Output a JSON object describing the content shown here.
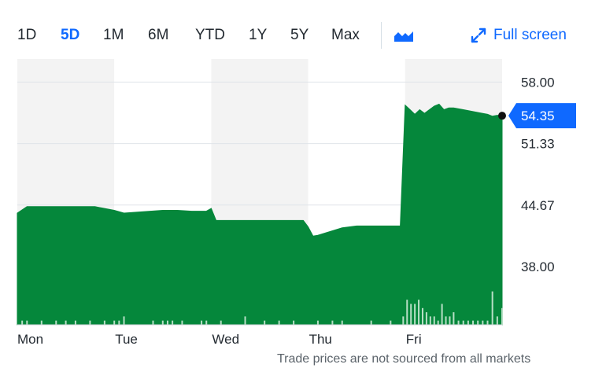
{
  "toolbar": {
    "ranges": [
      "1D",
      "5D",
      "1M",
      "6M",
      "YTD",
      "1Y",
      "5Y",
      "Max"
    ],
    "active_range": "5D",
    "chart_type_icon": "mountain-chart-icon",
    "fullscreen_icon": "expand-arrows-icon",
    "fullscreen_label": "Full screen"
  },
  "colors": {
    "price_area": "#05873b",
    "volume_bars": "#b7dfc5",
    "accent": "#0f69ff",
    "alt_band": "#f3f3f3"
  },
  "chart_data": {
    "type": "area",
    "x_categories": [
      "Mon",
      "Tue",
      "Wed",
      "Thu",
      "Fri"
    ],
    "yticks": [
      58.0,
      51.33,
      44.67,
      38.0
    ],
    "ylim": [
      31.7,
      60.5
    ],
    "grid": true,
    "y_axis_position": "right",
    "last_price": 54.35,
    "last_price_label": "54.35",
    "price_series": [
      [
        0.0,
        43.8
      ],
      [
        0.1,
        44.5
      ],
      [
        0.8,
        44.5
      ],
      [
        1.0,
        44.1
      ],
      [
        1.1,
        43.8
      ],
      [
        1.5,
        44.1
      ],
      [
        1.65,
        44.1
      ],
      [
        1.8,
        44.0
      ],
      [
        1.95,
        44.0
      ],
      [
        2.0,
        44.3
      ],
      [
        2.05,
        43.0
      ],
      [
        2.5,
        43.0
      ],
      [
        2.7,
        43.0
      ],
      [
        2.95,
        43.0
      ],
      [
        3.0,
        42.3
      ],
      [
        3.05,
        41.3
      ],
      [
        3.1,
        41.4
      ],
      [
        3.35,
        42.2
      ],
      [
        3.5,
        42.4
      ],
      [
        3.8,
        42.4
      ],
      [
        3.95,
        42.4
      ],
      [
        4.0,
        55.5
      ],
      [
        4.05,
        55.0
      ],
      [
        4.1,
        54.5
      ],
      [
        4.15,
        55.0
      ],
      [
        4.2,
        54.6
      ],
      [
        4.25,
        55.0
      ],
      [
        4.3,
        55.4
      ],
      [
        4.35,
        55.6
      ],
      [
        4.4,
        55.0
      ],
      [
        4.45,
        55.2
      ],
      [
        4.5,
        55.2
      ],
      [
        4.6,
        55.0
      ],
      [
        4.7,
        54.8
      ],
      [
        4.8,
        54.6
      ],
      [
        4.85,
        54.5
      ],
      [
        4.9,
        54.3
      ],
      [
        4.95,
        54.4
      ],
      [
        5.0,
        54.35
      ]
    ],
    "volume_series": [
      [
        0.05,
        1
      ],
      [
        0.1,
        1
      ],
      [
        0.25,
        1
      ],
      [
        0.4,
        1
      ],
      [
        0.5,
        1
      ],
      [
        0.6,
        1
      ],
      [
        0.75,
        1
      ],
      [
        0.9,
        1
      ],
      [
        1.0,
        1
      ],
      [
        1.05,
        1
      ],
      [
        1.1,
        2
      ],
      [
        1.4,
        1
      ],
      [
        1.5,
        1
      ],
      [
        1.55,
        1
      ],
      [
        1.6,
        1
      ],
      [
        1.7,
        1
      ],
      [
        1.9,
        1
      ],
      [
        1.95,
        1
      ],
      [
        2.1,
        1
      ],
      [
        2.35,
        2
      ],
      [
        2.55,
        1
      ],
      [
        2.7,
        1
      ],
      [
        2.85,
        1
      ],
      [
        3.1,
        1
      ],
      [
        3.25,
        1
      ],
      [
        3.35,
        1
      ],
      [
        3.65,
        1
      ],
      [
        3.85,
        1
      ],
      [
        3.98,
        2
      ],
      [
        4.02,
        6
      ],
      [
        4.06,
        5
      ],
      [
        4.1,
        5
      ],
      [
        4.14,
        6
      ],
      [
        4.18,
        4
      ],
      [
        4.22,
        3
      ],
      [
        4.26,
        2
      ],
      [
        4.3,
        2
      ],
      [
        4.34,
        1
      ],
      [
        4.38,
        5
      ],
      [
        4.42,
        2
      ],
      [
        4.46,
        2
      ],
      [
        4.5,
        3
      ],
      [
        4.55,
        1
      ],
      [
        4.6,
        1
      ],
      [
        4.65,
        1
      ],
      [
        4.7,
        1
      ],
      [
        4.75,
        1
      ],
      [
        4.8,
        1
      ],
      [
        4.85,
        1
      ],
      [
        4.9,
        8
      ],
      [
        4.95,
        2
      ],
      [
        5.0,
        4
      ]
    ]
  },
  "footnote": "Trade prices are not sourced from all markets"
}
